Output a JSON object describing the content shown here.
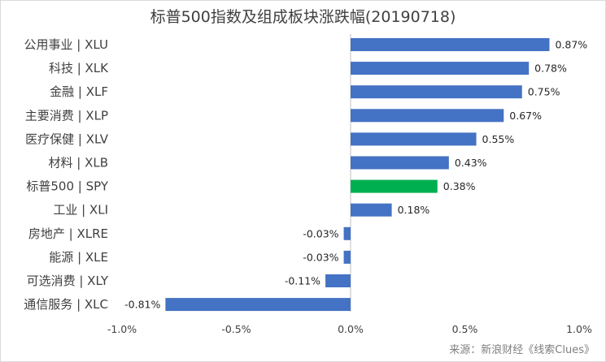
{
  "chart_data": {
    "type": "bar",
    "orientation": "horizontal",
    "title": "标普500指数及组成板块涨跌幅(20190718)",
    "categories": [
      "公用事业 | XLU",
      "科技 | XLK",
      "金融 | XLF",
      "主要消费 | XLP",
      "医疗保健 | XLV",
      "材料 | XLB",
      "标普500 | SPY",
      "工业 | XLI",
      "房地产 | XLRE",
      "能源 | XLE",
      "可选消费 | XLY",
      "通信服务 | XLC"
    ],
    "values": [
      0.87,
      0.78,
      0.75,
      0.67,
      0.55,
      0.43,
      0.38,
      0.18,
      -0.03,
      -0.03,
      -0.11,
      -0.81
    ],
    "value_labels": [
      "0.87%",
      "0.78%",
      "0.75%",
      "0.67%",
      "0.55%",
      "0.43%",
      "0.38%",
      "0.18%",
      "-0.03%",
      "-0.03%",
      "-0.11%",
      "-0.81%"
    ],
    "xlim": [
      -1.0,
      1.0
    ],
    "xticks": [
      -1.0,
      -0.5,
      0.0,
      0.5,
      1.0
    ],
    "xtick_labels": [
      "-1.0%",
      "-0.5%",
      "0.0%",
      "0.5%",
      "1.0%"
    ],
    "xlabel": "",
    "ylabel": "",
    "grid": false,
    "colors": {
      "default": "#4472c4",
      "highlight": "#00b050"
    },
    "highlight_index": 6
  },
  "source": "来源：新浪财经《线索Clues》"
}
